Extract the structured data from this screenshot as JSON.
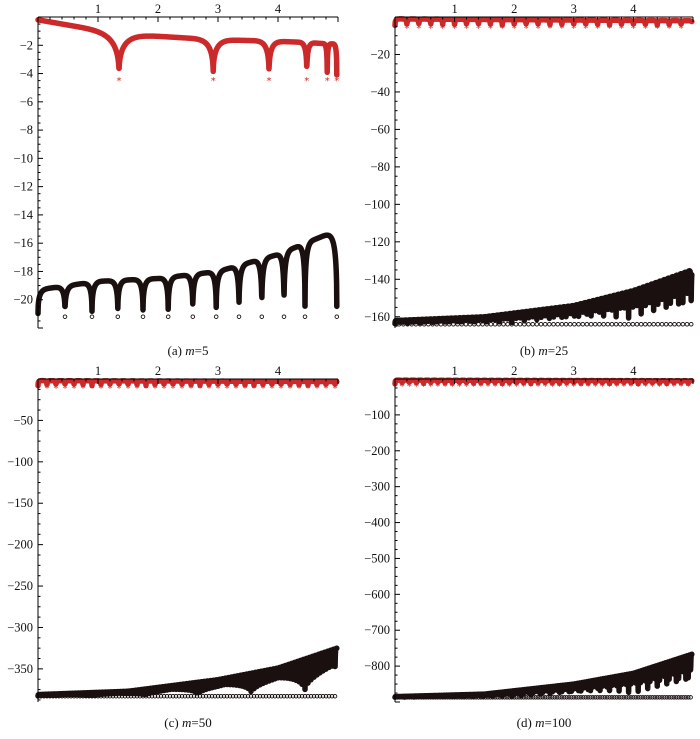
{
  "colors": {
    "red_series": "#cc2a2a",
    "black_series": "#1a1010",
    "axis": "#000000"
  },
  "chart_data": [
    {
      "type": "scatter",
      "caption_prefix": "(a) ",
      "caption_var": "m",
      "caption_suffix": "=5",
      "xlim": [
        0,
        5
      ],
      "ylim": [
        -22,
        0
      ],
      "xticks": [
        1,
        2,
        3,
        4
      ],
      "yticks": [
        -2,
        -4,
        -6,
        -8,
        -10,
        -12,
        -14,
        -16,
        -18,
        -20
      ],
      "red": {
        "zeros": [
          1.35,
          2.92,
          3.85,
          4.48,
          4.82,
          4.98
        ],
        "depth": 4.4,
        "envelope": [
          [
            0,
            -0.2
          ],
          [
            1.35,
            -1.2
          ],
          [
            2.92,
            -1.6
          ],
          [
            3.85,
            -1.7
          ],
          [
            4.48,
            -1.8
          ],
          [
            4.82,
            -1.9
          ],
          [
            4.98,
            -1.9
          ]
        ]
      },
      "black": {
        "zeros": [
          0,
          0.45,
          0.9,
          1.33,
          1.75,
          2.17,
          2.58,
          2.97,
          3.35,
          3.73,
          4.1,
          4.45,
          4.98
        ],
        "depth": 21.2,
        "envelope": [
          [
            0,
            -19.3
          ],
          [
            1,
            -18.7
          ],
          [
            2,
            -18.5
          ],
          [
            3,
            -18.0
          ],
          [
            4,
            -16.8
          ],
          [
            4.98,
            -15.1
          ]
        ]
      }
    },
    {
      "type": "scatter",
      "caption_prefix": "(b) ",
      "caption_var": "m",
      "caption_suffix": "=25",
      "xlim": [
        0,
        5
      ],
      "ylim": [
        -166,
        0
      ],
      "xticks": [
        1,
        2,
        3,
        4
      ],
      "yticks": [
        -20,
        -40,
        -60,
        -80,
        -100,
        -120,
        -140,
        -160
      ],
      "red": {
        "zeros_step": 0.2,
        "depth": 5,
        "envelope": [
          [
            0,
            -1
          ],
          [
            2.5,
            -1.5
          ],
          [
            4.98,
            -2
          ]
        ]
      },
      "black": {
        "zeros_step": 0.07,
        "depth": 164,
        "envelope": [
          [
            0,
            -162
          ],
          [
            1.5,
            -160
          ],
          [
            3,
            -154
          ],
          [
            4,
            -146
          ],
          [
            4.98,
            -135
          ]
        ]
      }
    },
    {
      "type": "scatter",
      "caption_prefix": "(c) ",
      "caption_var": "m",
      "caption_suffix": "=50",
      "xlim": [
        0,
        5
      ],
      "ylim": [
        -390,
        0
      ],
      "xticks": [
        1,
        2,
        3,
        4
      ],
      "yticks": [
        -50,
        -100,
        -150,
        -200,
        -250,
        -300,
        -350
      ],
      "red": {
        "zeros_step": 0.15,
        "depth": 9,
        "envelope": [
          [
            0,
            -2
          ],
          [
            4.98,
            -3
          ]
        ]
      },
      "black": {
        "zeros_step": 0.05,
        "depth": 383,
        "envelope": [
          [
            0,
            -381
          ],
          [
            1.5,
            -377
          ],
          [
            3,
            -363
          ],
          [
            4,
            -349
          ],
          [
            4.98,
            -325
          ]
        ]
      }
    },
    {
      "type": "scatter",
      "caption_prefix": "(d) ",
      "caption_var": "m",
      "caption_suffix": "=100",
      "xlim": [
        0,
        5
      ],
      "ylim": [
        -900,
        0
      ],
      "xticks": [
        1,
        2,
        3,
        4
      ],
      "yticks": [
        -100,
        -200,
        -300,
        -400,
        -500,
        -600,
        -700,
        -800
      ],
      "red": {
        "zeros_step": 0.12,
        "depth": 15,
        "envelope": [
          [
            0,
            -3
          ],
          [
            4.98,
            -5
          ]
        ]
      },
      "black": {
        "zeros_step": 0.04,
        "depth": 887,
        "envelope": [
          [
            0,
            -885
          ],
          [
            1.5,
            -878
          ],
          [
            3,
            -850
          ],
          [
            4,
            -820
          ],
          [
            4.98,
            -767
          ]
        ]
      }
    }
  ]
}
